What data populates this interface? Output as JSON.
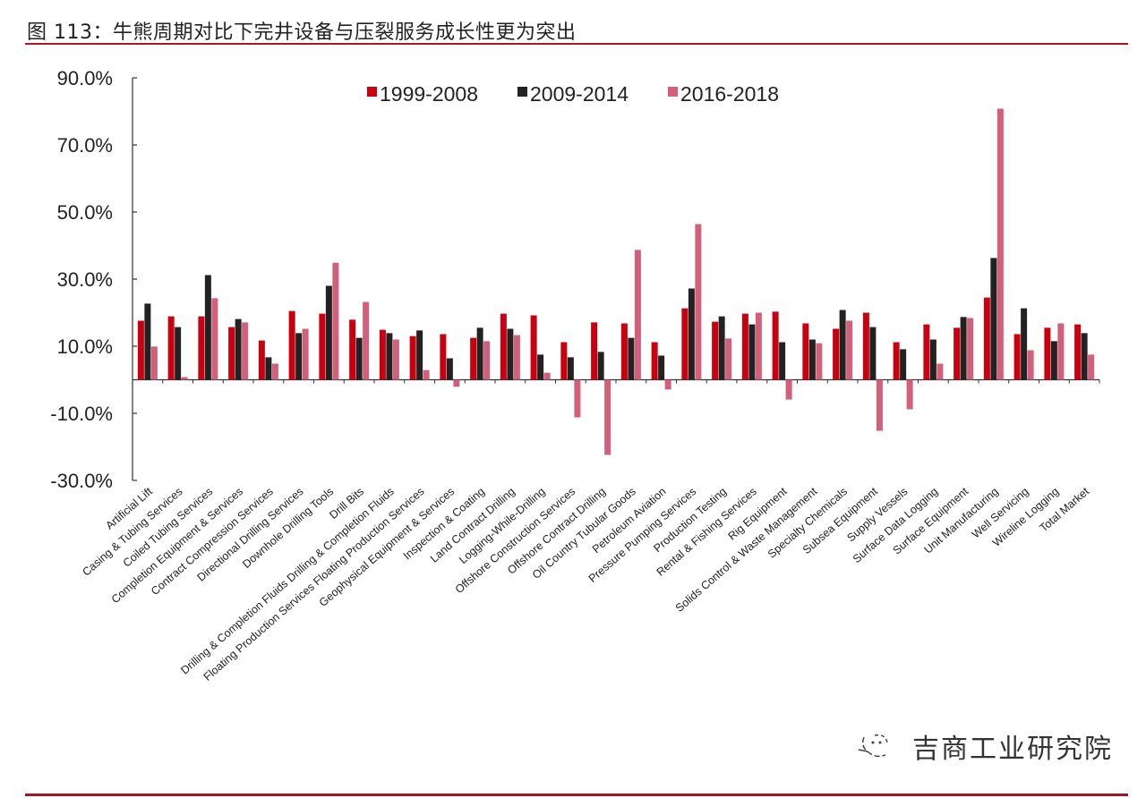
{
  "title": "图 113：牛熊周期对比下完井设备与压裂服务成长性更为突出",
  "watermark": "吉商工业研究院",
  "chart_data": {
    "type": "bar",
    "title": "图 113：牛熊周期对比下完井设备与压裂服务成长性更为突出",
    "xlabel": "",
    "ylabel": "",
    "ylim": [
      -30,
      90
    ],
    "yticks": [
      90,
      70,
      50,
      30,
      10,
      -10,
      -30
    ],
    "ytick_labels": [
      "90.0%",
      "70.0%",
      "50.0%",
      "30.0%",
      "10.0%",
      "-10.0%",
      "-30.0%"
    ],
    "grid": false,
    "legend_position": "top-center",
    "categories": [
      "Artificial Lift",
      "Casing & Tubing Services",
      "Coiled Tubing Services",
      "Completion Equipment & Services",
      "Contract Compression Services",
      "Directional Drilling Services",
      "Downhole Drilling Tools",
      "Drill Bits",
      "Drilling & Completion Fluids Drilling & Completion Fluids",
      "Floating Production Services Floating Production Services",
      "Geophysical Equipment & Services",
      "Inspection & Coating",
      "Land Contract Drilling",
      "Logging-While-Drilling",
      "Offshore Construction Services",
      "Offshore Contract Drilling",
      "Oil Country Tubular Goods",
      "Petroleum Aviation",
      "Pressure Pumping Services",
      "Production Testing",
      "Rental & Fishing Services",
      "Rig Equipment",
      "Solids Control & Waste Management",
      "Specialty Chemicals",
      "Subsea Equipment",
      "Supply Vessels",
      "Surface Data Logging",
      "Surface Equipment",
      "Unit Manufacturing",
      "Well Servicing",
      "Wireline Logging",
      "Total Market"
    ],
    "series": [
      {
        "name": "1999-2008",
        "color": "#c8000f",
        "values": [
          17.6,
          18.9,
          18.9,
          15.7,
          11.7,
          20.5,
          19.7,
          17.9,
          14.9,
          13.0,
          13.6,
          12.5,
          19.7,
          19.2,
          11.2,
          17.1,
          16.8,
          11.2,
          21.3,
          17.3,
          19.7,
          20.3,
          16.8,
          15.2,
          20.0,
          11.2,
          16.5,
          15.5,
          24.5,
          13.6,
          15.5,
          16.5
        ]
      },
      {
        "name": "2009-2014",
        "color": "#222222",
        "values": [
          22.7,
          15.7,
          31.2,
          18.1,
          6.7,
          13.9,
          28.0,
          12.5,
          13.9,
          14.7,
          6.4,
          15.5,
          15.2,
          7.5,
          6.7,
          8.3,
          12.5,
          7.2,
          27.2,
          18.9,
          16.5,
          11.2,
          12.0,
          20.8,
          15.7,
          9.1,
          12.0,
          18.7,
          36.3,
          21.3,
          11.5,
          13.9
        ]
      },
      {
        "name": "2016-2018",
        "color": "#d3607a",
        "values": [
          9.9,
          0.8,
          24.3,
          17.1,
          4.8,
          15.2,
          34.9,
          23.2,
          12.0,
          2.9,
          -2.1,
          11.5,
          13.3,
          2.1,
          -11.2,
          -22.4,
          38.7,
          -2.9,
          46.4,
          12.3,
          20.0,
          -5.9,
          10.9,
          17.6,
          -15.2,
          -8.8,
          4.8,
          18.4,
          80.8,
          8.8,
          16.8,
          7.5
        ]
      }
    ]
  }
}
